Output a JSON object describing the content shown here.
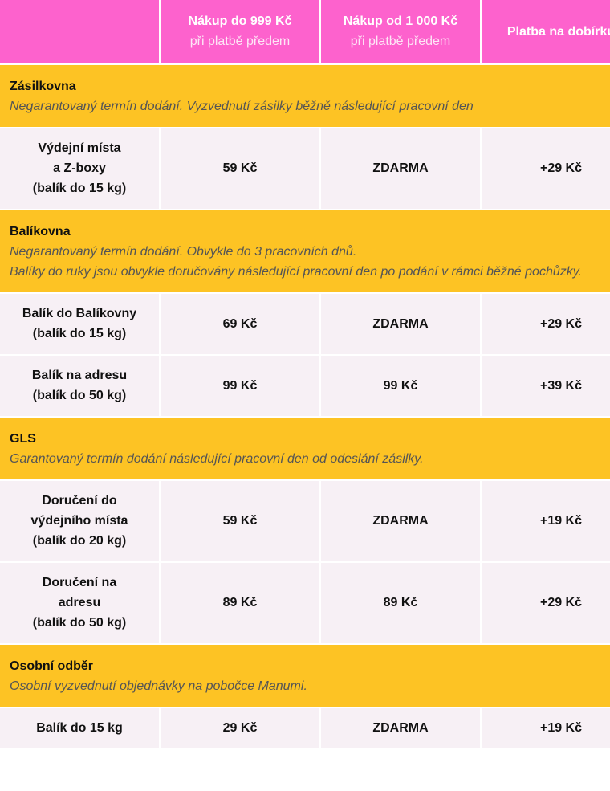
{
  "header": {
    "columns": [
      {
        "title": "Nákup do 999 Kč",
        "subtitle": "při platbě předem"
      },
      {
        "title": "Nákup od 1 000 Kč",
        "subtitle": "při platbě předem"
      },
      {
        "title": "Platba na dobírku"
      }
    ]
  },
  "sections": [
    {
      "name": "Zásilkovna",
      "description": [
        "Negarantovaný termín dodání. Vyzvednutí zásilky běžně následující pracovní den"
      ],
      "rows": [
        {
          "label": [
            "Výdejní místa",
            "a Z-boxy",
            "(balík do 15 kg)"
          ],
          "cells": [
            "59 Kč",
            "ZDARMA",
            "+29 Kč"
          ]
        }
      ]
    },
    {
      "name": "Balíkovna",
      "description": [
        "Negarantovaný termín dodání. Obvykle do 3 pracovních dnů.",
        "Balíky do ruky jsou obvykle doručovány následující pracovní den po podání v rámci běžné pochůzky."
      ],
      "rows": [
        {
          "label": [
            "Balík do Balíkovny",
            "(balík do 15 kg)"
          ],
          "cells": [
            "69 Kč",
            "ZDARMA",
            "+29 Kč"
          ]
        },
        {
          "label": [
            "Balík na adresu",
            "(balík do 50 kg)"
          ],
          "cells": [
            "99 Kč",
            "99 Kč",
            "+39 Kč"
          ]
        }
      ]
    },
    {
      "name": "GLS",
      "description": [
        "Garantovaný termín dodání následující pracovní den od odeslání zásilky."
      ],
      "rows": [
        {
          "label": [
            "Doručení do",
            "výdejního místa",
            "(balík do 20 kg)"
          ],
          "cells": [
            "59 Kč",
            "ZDARMA",
            "+19 Kč"
          ]
        },
        {
          "label": [
            "Doručení na",
            "adresu",
            "(balík do 50 kg)"
          ],
          "cells": [
            "89 Kč",
            "89 Kč",
            "+29 Kč"
          ]
        }
      ]
    },
    {
      "name": "Osobní odběr",
      "description": [
        "Osobní vyzvednutí objednávky na pobočce Manumi."
      ],
      "rows": [
        {
          "label": [
            "Balík do 15 kg"
          ],
          "cells": [
            "29 Kč",
            "ZDARMA",
            "+19 Kč"
          ]
        }
      ]
    }
  ]
}
